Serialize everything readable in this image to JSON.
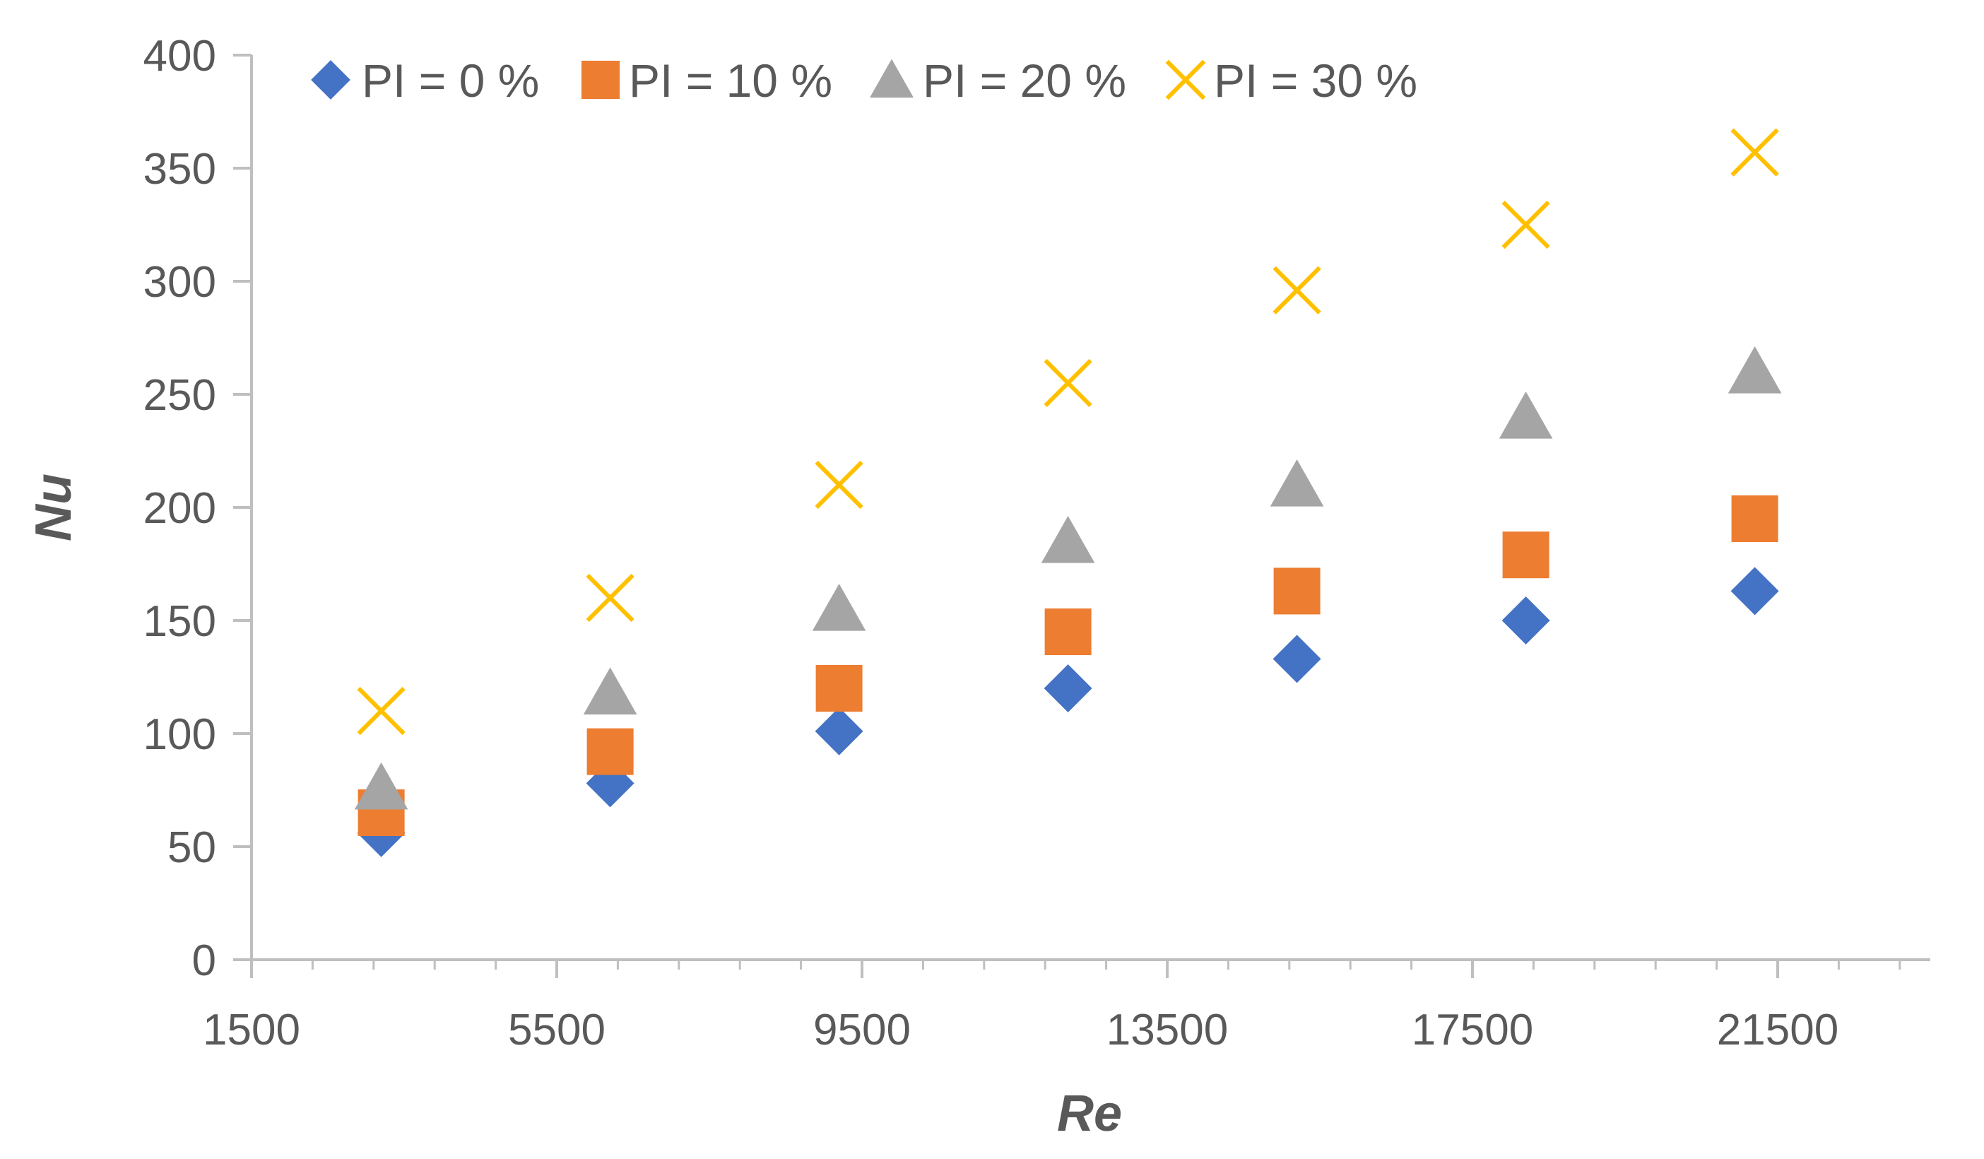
{
  "chart_data": {
    "type": "scatter",
    "title": "",
    "xlabel": "Re",
    "ylabel": "Nu",
    "xlim": [
      1500,
      23500
    ],
    "ylim": [
      0,
      400
    ],
    "x_ticks": [
      1500,
      5500,
      9500,
      13500,
      17500,
      21500
    ],
    "y_ticks": [
      0,
      50,
      100,
      150,
      200,
      250,
      300,
      350,
      400
    ],
    "x_tick_labels": [
      "1500",
      "5500",
      "9500",
      "13500",
      "17500",
      "21500"
    ],
    "y_tick_labels": [
      "0",
      "50",
      "100",
      "150",
      "200",
      "250",
      "300",
      "350",
      "400"
    ],
    "grid": false,
    "legend_position": "top-left",
    "x": [
      3200,
      6200,
      9200,
      12200,
      15200,
      18200,
      21200
    ],
    "series": [
      {
        "name": "PI = 0 %",
        "marker": "diamond",
        "color": "#4472C4",
        "values": [
          56,
          78,
          101,
          120,
          133,
          150,
          163
        ]
      },
      {
        "name": "PI = 10 %",
        "marker": "square",
        "color": "#ED7D31",
        "values": [
          65,
          92,
          120,
          145,
          163,
          179,
          195
        ]
      },
      {
        "name": "PI = 20 %",
        "marker": "triangle",
        "color": "#A5A5A5",
        "values": [
          76,
          118,
          155,
          185,
          210,
          240,
          260
        ]
      },
      {
        "name": "PI = 30 %",
        "marker": "x",
        "color": "#FFC000",
        "values": [
          110,
          160,
          210,
          255,
          296,
          325,
          357
        ]
      }
    ]
  }
}
